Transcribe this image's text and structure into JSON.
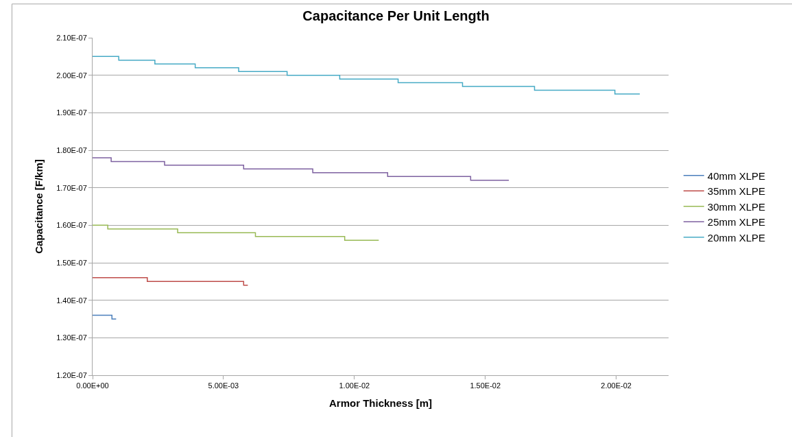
{
  "chart_data": {
    "type": "step",
    "title": "Capacitance Per Unit Length",
    "xlabel": "Armor Thickness [m]",
    "ylabel": "Capacitance [F/km]",
    "xlim": [
      0,
      0.022
    ],
    "xticks": [
      {
        "value": 0,
        "label": "0.00E+00"
      },
      {
        "value": 0.005,
        "label": "5.00E-03"
      },
      {
        "value": 0.01,
        "label": "1.00E-02"
      },
      {
        "value": 0.015,
        "label": "1.50E-02"
      },
      {
        "value": 0.02,
        "label": "2.00E-02"
      }
    ],
    "ylim": [
      1.2e-07,
      2.1e-07
    ],
    "yticks": [
      {
        "value": 1.2e-07,
        "label": "1.20E-07"
      },
      {
        "value": 1.3e-07,
        "label": "1.30E-07"
      },
      {
        "value": 1.4e-07,
        "label": "1.40E-07"
      },
      {
        "value": 1.5e-07,
        "label": "1.50E-07"
      },
      {
        "value": 1.6e-07,
        "label": "1.60E-07"
      },
      {
        "value": 1.7e-07,
        "label": "1.70E-07"
      },
      {
        "value": 1.8e-07,
        "label": "1.80E-07"
      },
      {
        "value": 1.9e-07,
        "label": "1.90E-07"
      },
      {
        "value": 2e-07,
        "label": "2.00E-07"
      },
      {
        "value": 2.1e-07,
        "label": "2.10E-07"
      }
    ],
    "grid": "y",
    "legend": "right",
    "marker": "none",
    "line_style": "solid",
    "series": [
      {
        "name": "40mm XLPE",
        "color": "#4a7ebb",
        "x": [
          0,
          0.00074,
          0.0009
        ],
        "values": [
          1.36e-07,
          1.35e-07,
          1.35e-07
        ]
      },
      {
        "name": "35mm XLPE",
        "color": "#be4b48",
        "x": [
          0,
          0.00209,
          0.00577,
          0.00593
        ],
        "values": [
          1.46e-07,
          1.45e-07,
          1.44e-07,
          1.44e-07
        ]
      },
      {
        "name": "30mm XLPE",
        "color": "#98b954",
        "x": [
          0,
          0.00058,
          0.00325,
          0.00622,
          0.00963,
          0.01093
        ],
        "values": [
          1.6e-07,
          1.59e-07,
          1.58e-07,
          1.57e-07,
          1.56e-07,
          1.56e-07
        ]
      },
      {
        "name": "25mm XLPE",
        "color": "#7d60a0",
        "x": [
          0,
          0.00071,
          0.00275,
          0.00577,
          0.00841,
          0.01127,
          0.01444,
          0.0159
        ],
        "values": [
          1.78e-07,
          1.77e-07,
          1.76e-07,
          1.75e-07,
          1.74e-07,
          1.73e-07,
          1.72e-07,
          1.72e-07
        ]
      },
      {
        "name": "20mm XLPE",
        "color": "#46aac5",
        "x": [
          0,
          0.001,
          0.00238,
          0.00392,
          0.00558,
          0.00743,
          0.00944,
          0.01167,
          0.01413,
          0.01688,
          0.01995,
          0.0209
        ],
        "values": [
          2.05e-07,
          2.04e-07,
          2.03e-07,
          2.02e-07,
          2.01e-07,
          2e-07,
          1.99e-07,
          1.98e-07,
          1.97e-07,
          1.96e-07,
          1.95e-07,
          1.95e-07
        ]
      }
    ]
  }
}
